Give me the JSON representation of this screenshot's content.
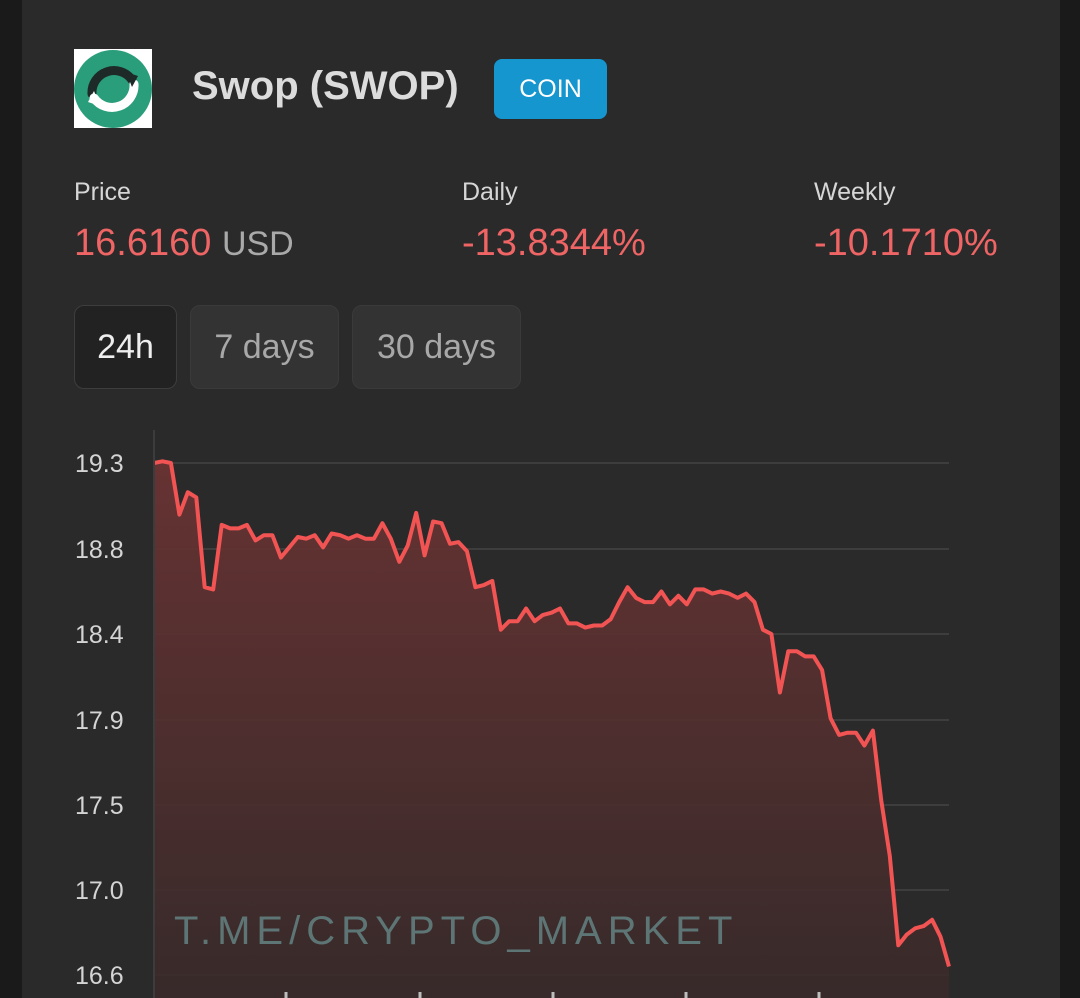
{
  "coin": {
    "name": "Swop (SWOP)",
    "badge": "COIN",
    "logo_icon": "swop-logo-icon"
  },
  "stats": {
    "price_label": "Price",
    "price_value": "16.6160",
    "price_unit": "USD",
    "daily_label": "Daily",
    "daily_value": "-13.8344%",
    "weekly_label": "Weekly",
    "weekly_value": "-10.1710%"
  },
  "tabs": [
    {
      "label": "24h",
      "active": true
    },
    {
      "label": "7 days",
      "active": false
    },
    {
      "label": "30 days",
      "active": false
    }
  ],
  "colors": {
    "negative": "#ef6464",
    "accent": "#1596cf",
    "line": "#f25454",
    "logo_green": "#2a9d7a"
  },
  "watermark": "T.ME/CRYPTO_MARKET",
  "chart_data": {
    "type": "area",
    "yticks": [
      "19.3",
      "18.8",
      "18.4",
      "17.9",
      "17.5",
      "17.0",
      "16.6"
    ],
    "ylim": [
      16.6,
      19.3
    ],
    "grid": true,
    "series": [
      {
        "values": [
          19.3,
          19.31,
          19.3,
          19.0,
          19.13,
          19.1,
          18.62,
          18.61,
          18.94,
          18.92,
          18.92,
          18.94,
          18.85,
          18.88,
          18.88,
          18.76,
          18.81,
          18.87,
          18.86,
          18.88,
          18.81,
          18.89,
          18.88,
          18.86,
          18.88,
          18.86,
          18.86,
          18.95,
          18.86,
          18.74,
          18.82,
          19.01,
          18.77,
          18.96,
          18.95,
          18.83,
          18.84,
          18.79,
          18.62,
          18.63,
          18.65,
          18.42,
          18.46,
          18.46,
          18.52,
          18.46,
          18.49,
          18.5,
          18.52,
          18.45,
          18.45,
          18.43,
          18.44,
          18.44,
          18.47,
          18.55,
          18.62,
          18.57,
          18.55,
          18.55,
          18.6,
          18.54,
          18.58,
          18.54,
          18.61,
          18.61,
          18.59,
          18.6,
          18.59,
          18.57,
          18.59,
          18.55,
          18.42,
          18.4,
          18.06,
          18.3,
          18.3,
          18.27,
          18.27,
          18.19,
          17.91,
          17.83,
          17.84,
          17.84,
          17.78,
          17.85,
          17.52,
          17.2,
          16.74,
          16.79,
          16.82,
          16.83,
          16.86,
          16.78,
          16.64
        ]
      }
    ]
  }
}
